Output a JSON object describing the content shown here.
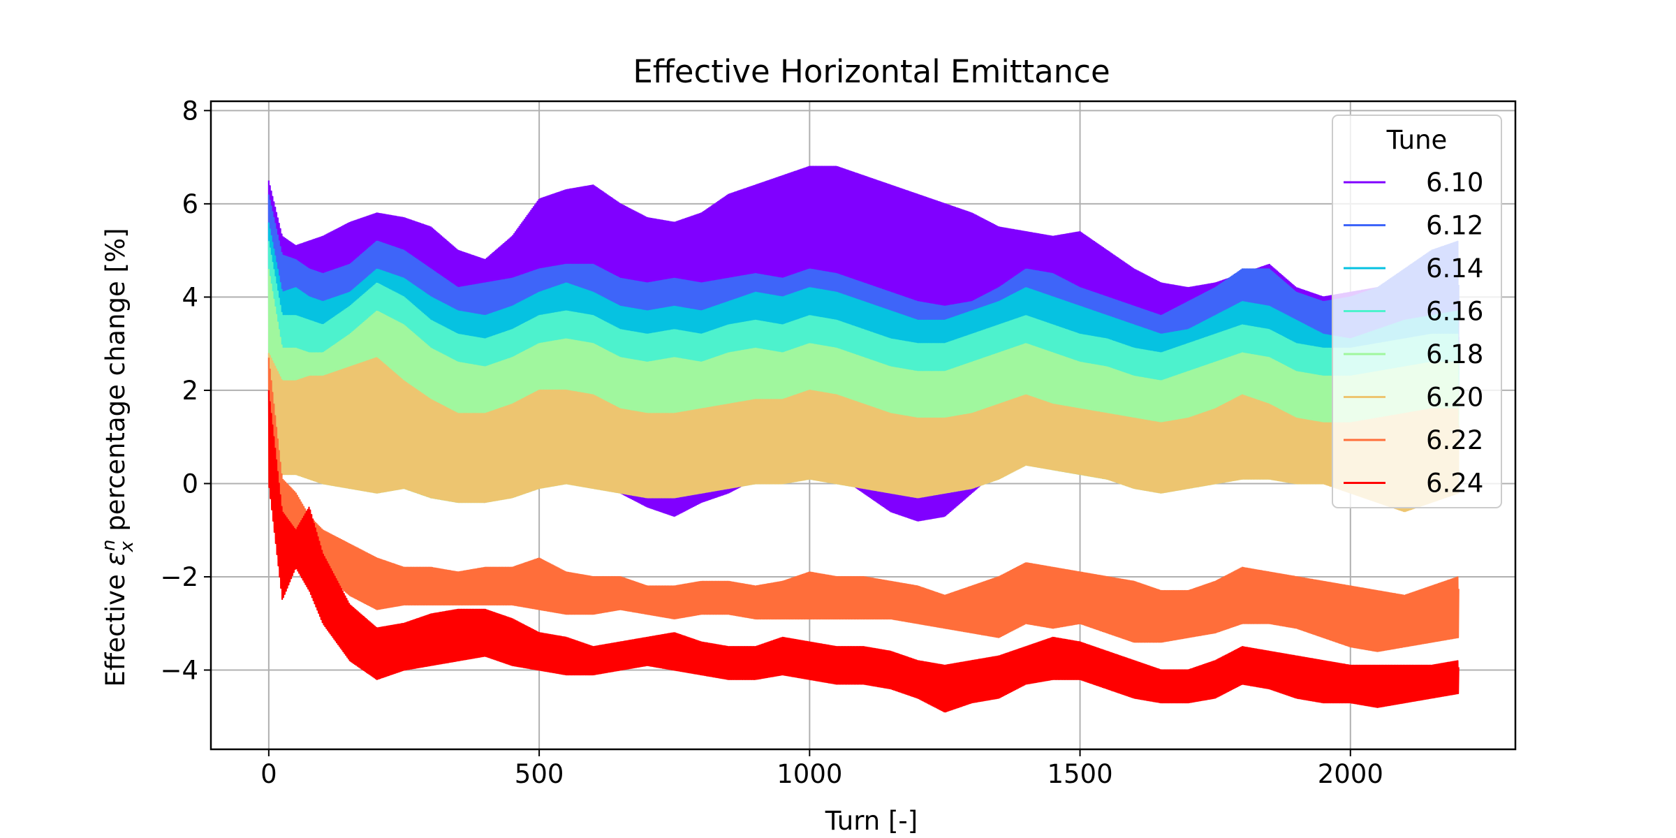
{
  "chart_data": {
    "type": "line",
    "title": "Effective Horizontal Emittance",
    "xlabel": "Turn [-]",
    "ylabel_prefix": "Effective ",
    "ylabel_symbol": "ε",
    "ylabel_sub": "x",
    "ylabel_sup": "n",
    "ylabel_suffix": " percentage change [%]",
    "xlim": [
      -107,
      2305
    ],
    "ylim": [
      -5.7,
      8.2
    ],
    "xticks": [
      0,
      500,
      1000,
      1500,
      2000
    ],
    "yticks": [
      -4,
      -2,
      0,
      2,
      4,
      6,
      8
    ],
    "xtick_labels": [
      "0",
      "500",
      "1000",
      "1500",
      "2000"
    ],
    "ytick_labels": [
      "−4",
      "−2",
      "0",
      "2",
      "4",
      "6",
      "8"
    ],
    "grid": true,
    "legend_title": "Tune",
    "legend_position": "top-right",
    "x": [
      0,
      25,
      50,
      75,
      100,
      150,
      200,
      250,
      300,
      350,
      400,
      450,
      500,
      550,
      600,
      650,
      700,
      750,
      800,
      850,
      900,
      950,
      1000,
      1050,
      1100,
      1150,
      1200,
      1250,
      1300,
      1350,
      1400,
      1450,
      1500,
      1550,
      1600,
      1650,
      1700,
      1750,
      1800,
      1850,
      1900,
      1950,
      2000,
      2050,
      2100,
      2150,
      2200
    ],
    "series": [
      {
        "name": "6.10",
        "color": "#8000ff",
        "upper": [
          6.5,
          5.3,
          5.1,
          5.2,
          5.3,
          5.6,
          5.8,
          5.7,
          5.5,
          5.0,
          4.8,
          5.3,
          6.1,
          6.3,
          6.4,
          6.0,
          5.7,
          5.6,
          5.8,
          6.2,
          6.4,
          6.6,
          6.8,
          6.8,
          6.6,
          6.4,
          6.2,
          6.0,
          5.8,
          5.5,
          5.4,
          5.3,
          5.4,
          5.0,
          4.6,
          4.3,
          4.2,
          4.3,
          4.5,
          4.7,
          4.2,
          4.0,
          4.1,
          4.2,
          4.0,
          3.9,
          3.8
        ],
        "lower": [
          0.0,
          0.3,
          0.4,
          0.2,
          0.1,
          0.0,
          -0.1,
          0.1,
          -0.2,
          -0.3,
          -0.4,
          -0.2,
          0.2,
          0.4,
          0.2,
          -0.2,
          -0.5,
          -0.7,
          -0.4,
          -0.2,
          0.1,
          0.4,
          0.6,
          0.2,
          -0.2,
          -0.6,
          -0.8,
          -0.7,
          -0.2,
          0.3,
          0.7,
          0.5,
          0.3,
          0.3,
          0.4,
          0.3,
          0.5,
          0.6,
          0.7,
          0.7,
          0.6,
          0.5,
          0.5,
          0.5,
          0.5,
          0.5,
          0.5
        ]
      },
      {
        "name": "6.12",
        "color": "#3e65f9",
        "upper": [
          6.2,
          4.9,
          4.8,
          4.6,
          4.5,
          4.7,
          5.2,
          5.0,
          4.6,
          4.2,
          4.3,
          4.4,
          4.6,
          4.7,
          4.7,
          4.4,
          4.3,
          4.4,
          4.3,
          4.4,
          4.5,
          4.4,
          4.6,
          4.5,
          4.3,
          4.1,
          3.9,
          3.8,
          3.9,
          4.2,
          4.6,
          4.5,
          4.2,
          4.0,
          3.8,
          3.6,
          3.9,
          4.2,
          4.6,
          4.6,
          4.1,
          3.9,
          4.0,
          4.2,
          4.6,
          5.0,
          5.2
        ],
        "lower": [
          0.0,
          0.3,
          0.4,
          0.3,
          0.2,
          0.1,
          0.0,
          0.2,
          0.2,
          0.1,
          0.0,
          0.1,
          0.3,
          0.4,
          0.4,
          0.3,
          0.2,
          0.2,
          0.2,
          0.3,
          0.3,
          0.4,
          0.5,
          0.4,
          0.3,
          0.3,
          0.2,
          0.2,
          0.3,
          0.4,
          0.6,
          0.5,
          0.4,
          0.3,
          0.2,
          0.1,
          0.2,
          0.3,
          0.4,
          0.4,
          0.3,
          0.3,
          0.4,
          0.5,
          0.5,
          0.5,
          0.5
        ]
      },
      {
        "name": "6.14",
        "color": "#06c2e1",
        "upper": [
          5.6,
          4.1,
          4.2,
          4.0,
          3.9,
          4.1,
          4.6,
          4.4,
          4.0,
          3.7,
          3.6,
          3.8,
          4.1,
          4.3,
          4.1,
          3.8,
          3.7,
          3.8,
          3.7,
          3.9,
          4.1,
          4.0,
          4.2,
          4.1,
          3.9,
          3.7,
          3.5,
          3.5,
          3.7,
          3.9,
          4.2,
          4.0,
          3.8,
          3.6,
          3.4,
          3.2,
          3.3,
          3.6,
          3.9,
          3.8,
          3.5,
          3.2,
          3.1,
          3.3,
          3.5,
          3.6,
          3.7
        ],
        "lower": [
          0.0,
          0.3,
          0.3,
          0.2,
          0.1,
          0.0,
          -0.1,
          0.0,
          -0.2,
          -0.3,
          -0.2,
          -0.1,
          0.1,
          0.2,
          0.1,
          -0.1,
          -0.2,
          -0.2,
          -0.2,
          0.0,
          0.1,
          0.2,
          0.3,
          0.2,
          0.1,
          0.0,
          -0.2,
          -0.2,
          0.0,
          0.3,
          0.6,
          0.4,
          0.3,
          0.2,
          0.1,
          0.0,
          0.1,
          0.2,
          0.3,
          0.3,
          0.2,
          0.2,
          0.3,
          0.3,
          0.3,
          0.3,
          0.3
        ]
      },
      {
        "name": "6.16",
        "color": "#4df2cd",
        "upper": [
          5.2,
          3.6,
          3.6,
          3.5,
          3.4,
          3.8,
          4.3,
          4.0,
          3.5,
          3.2,
          3.1,
          3.3,
          3.6,
          3.7,
          3.6,
          3.3,
          3.2,
          3.3,
          3.2,
          3.4,
          3.5,
          3.4,
          3.6,
          3.5,
          3.3,
          3.1,
          3.0,
          3.0,
          3.2,
          3.4,
          3.6,
          3.4,
          3.2,
          3.1,
          2.9,
          2.8,
          3.0,
          3.2,
          3.4,
          3.3,
          3.0,
          2.9,
          2.9,
          3.0,
          3.1,
          3.2,
          3.2
        ],
        "lower": [
          0.0,
          0.2,
          0.3,
          0.2,
          0.1,
          0.0,
          -0.1,
          -0.1,
          -0.3,
          -0.4,
          -0.3,
          -0.2,
          0.0,
          0.1,
          0.0,
          -0.1,
          -0.2,
          -0.2,
          -0.2,
          0.0,
          0.0,
          0.1,
          0.2,
          0.1,
          0.0,
          -0.1,
          -0.2,
          -0.2,
          -0.1,
          0.2,
          0.5,
          0.3,
          0.2,
          0.1,
          0.0,
          -0.1,
          0.0,
          0.1,
          0.2,
          0.2,
          0.1,
          0.1,
          0.2,
          0.2,
          0.2,
          0.2,
          0.2
        ]
      },
      {
        "name": "6.18",
        "color": "#a0f79e",
        "upper": [
          4.6,
          2.9,
          2.9,
          2.8,
          2.8,
          3.2,
          3.7,
          3.4,
          2.9,
          2.6,
          2.5,
          2.7,
          3.0,
          3.1,
          3.0,
          2.7,
          2.6,
          2.7,
          2.6,
          2.8,
          2.9,
          2.8,
          3.0,
          2.9,
          2.7,
          2.5,
          2.4,
          2.4,
          2.6,
          2.8,
          3.0,
          2.8,
          2.6,
          2.5,
          2.3,
          2.2,
          2.4,
          2.6,
          2.8,
          2.7,
          2.4,
          2.3,
          2.3,
          2.4,
          2.5,
          2.6,
          2.6
        ],
        "lower": [
          0.0,
          0.2,
          0.2,
          0.1,
          0.0,
          -0.1,
          -0.2,
          -0.1,
          -0.3,
          -0.4,
          -0.4,
          -0.3,
          -0.1,
          0.0,
          -0.1,
          -0.2,
          -0.3,
          -0.3,
          -0.2,
          -0.1,
          0.0,
          0.0,
          0.1,
          0.0,
          -0.1,
          -0.2,
          -0.3,
          -0.2,
          -0.1,
          0.1,
          0.4,
          0.3,
          0.2,
          0.1,
          -0.1,
          -0.2,
          -0.1,
          0.0,
          0.1,
          0.1,
          0.0,
          0.0,
          0.1,
          0.1,
          0.1,
          0.1,
          0.1
        ]
      },
      {
        "name": "6.20",
        "color": "#edc570",
        "upper": [
          2.8,
          2.2,
          2.2,
          2.3,
          2.3,
          2.5,
          2.7,
          2.2,
          1.8,
          1.5,
          1.5,
          1.7,
          2.0,
          2.0,
          1.9,
          1.6,
          1.5,
          1.5,
          1.6,
          1.7,
          1.8,
          1.8,
          2.0,
          1.9,
          1.7,
          1.5,
          1.4,
          1.4,
          1.5,
          1.7,
          1.9,
          1.7,
          1.6,
          1.5,
          1.4,
          1.3,
          1.4,
          1.6,
          1.9,
          1.7,
          1.4,
          1.3,
          1.3,
          1.4,
          1.5,
          1.6,
          1.6
        ],
        "lower": [
          0.0,
          0.2,
          0.2,
          0.1,
          0.0,
          -0.1,
          -0.2,
          -0.1,
          -0.3,
          -0.4,
          -0.4,
          -0.3,
          -0.1,
          0.0,
          -0.1,
          -0.2,
          -0.3,
          -0.3,
          -0.2,
          -0.1,
          0.0,
          0.0,
          0.1,
          0.0,
          -0.1,
          -0.2,
          -0.3,
          -0.2,
          -0.1,
          0.1,
          0.4,
          0.3,
          0.2,
          0.1,
          -0.1,
          -0.2,
          -0.1,
          0.0,
          0.1,
          0.1,
          0.0,
          0.0,
          -0.2,
          -0.4,
          -0.6,
          -0.4,
          -0.2
        ]
      },
      {
        "name": "6.22",
        "color": "#ff6e3a",
        "upper": [
          2.7,
          0.1,
          -0.2,
          -0.7,
          -1.0,
          -1.3,
          -1.6,
          -1.8,
          -1.8,
          -1.9,
          -1.8,
          -1.8,
          -1.6,
          -1.9,
          -2.0,
          -2.0,
          -2.2,
          -2.2,
          -2.1,
          -2.1,
          -2.2,
          -2.1,
          -1.9,
          -2.0,
          -2.0,
          -2.1,
          -2.2,
          -2.4,
          -2.2,
          -2.0,
          -1.7,
          -1.8,
          -1.9,
          -2.0,
          -2.1,
          -2.3,
          -2.3,
          -2.1,
          -1.8,
          -1.9,
          -2.0,
          -2.1,
          -2.2,
          -2.3,
          -2.4,
          -2.2,
          -2.0
        ],
        "lower": [
          0.0,
          -2.3,
          -1.8,
          -1.7,
          -1.9,
          -2.4,
          -2.7,
          -2.6,
          -2.6,
          -2.6,
          -2.6,
          -2.6,
          -2.7,
          -2.8,
          -2.8,
          -2.7,
          -2.8,
          -2.9,
          -2.8,
          -2.8,
          -2.9,
          -2.9,
          -2.9,
          -2.9,
          -2.9,
          -2.9,
          -3.0,
          -3.1,
          -3.2,
          -3.3,
          -3.0,
          -3.1,
          -3.0,
          -3.2,
          -3.4,
          -3.4,
          -3.3,
          -3.2,
          -3.0,
          -3.0,
          -3.1,
          -3.3,
          -3.5,
          -3.6,
          -3.5,
          -3.4,
          -3.3
        ]
      },
      {
        "name": "6.24",
        "color": "#ff0000",
        "upper": [
          2.0,
          -0.6,
          -1.0,
          -0.5,
          -1.5,
          -2.6,
          -3.1,
          -3.0,
          -2.8,
          -2.7,
          -2.7,
          -2.9,
          -3.2,
          -3.3,
          -3.5,
          -3.4,
          -3.3,
          -3.2,
          -3.4,
          -3.5,
          -3.5,
          -3.3,
          -3.4,
          -3.5,
          -3.5,
          -3.6,
          -3.8,
          -3.9,
          -3.8,
          -3.7,
          -3.5,
          -3.3,
          -3.4,
          -3.6,
          -3.8,
          -4.0,
          -4.0,
          -3.8,
          -3.5,
          -3.6,
          -3.7,
          -3.8,
          -3.9,
          -3.9,
          -3.9,
          -3.9,
          -3.8
        ],
        "lower": [
          0.0,
          -2.5,
          -1.8,
          -2.3,
          -3.0,
          -3.8,
          -4.2,
          -4.0,
          -3.9,
          -3.8,
          -3.7,
          -3.9,
          -4.0,
          -4.1,
          -4.1,
          -4.0,
          -3.9,
          -4.0,
          -4.1,
          -4.2,
          -4.2,
          -4.1,
          -4.2,
          -4.3,
          -4.3,
          -4.4,
          -4.6,
          -4.9,
          -4.7,
          -4.6,
          -4.3,
          -4.2,
          -4.2,
          -4.4,
          -4.6,
          -4.7,
          -4.7,
          -4.6,
          -4.3,
          -4.4,
          -4.6,
          -4.7,
          -4.7,
          -4.8,
          -4.7,
          -4.6,
          -4.5
        ]
      }
    ]
  }
}
